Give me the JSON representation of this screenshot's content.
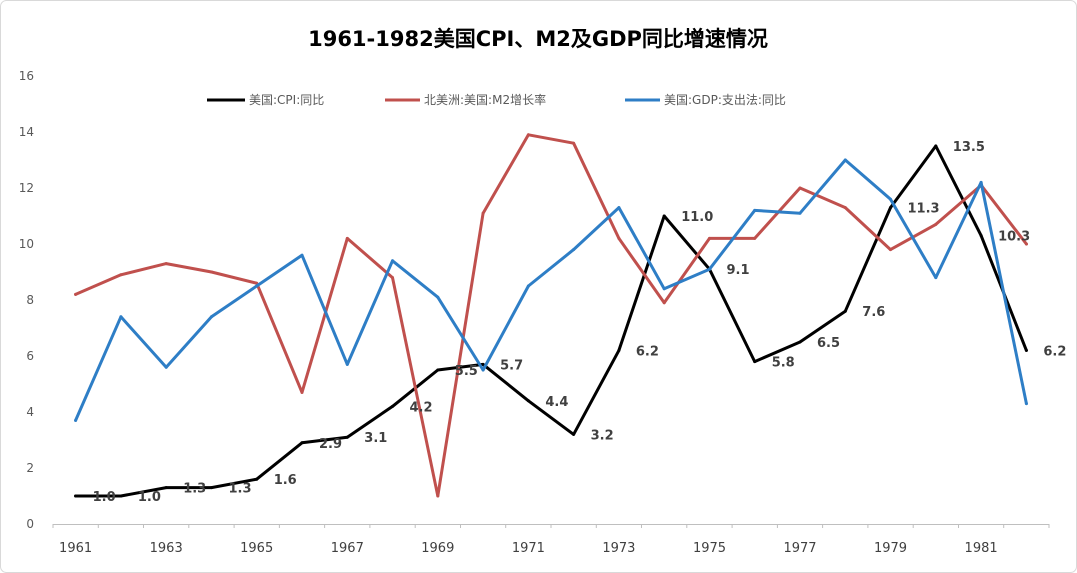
{
  "chart_data": {
    "type": "line",
    "title": "1961-1982美国CPI、M2及GDP同比增速情况",
    "x": [
      1961,
      1962,
      1963,
      1964,
      1965,
      1966,
      1967,
      1968,
      1969,
      1970,
      1971,
      1972,
      1973,
      1974,
      1975,
      1976,
      1977,
      1978,
      1979,
      1980,
      1981,
      1982
    ],
    "x_tick_labels": [
      "1961",
      "1963",
      "1965",
      "1967",
      "1969",
      "1971",
      "1973",
      "1975",
      "1977",
      "1979",
      "1981"
    ],
    "y_tick_labels": [
      "0",
      "2",
      "4",
      "6",
      "8",
      "10",
      "12",
      "14",
      "16"
    ],
    "ylim": [
      0,
      16
    ],
    "grid": false,
    "legend_position": "top",
    "series": [
      {
        "name": "美国:CPI:同比",
        "color": "#000000",
        "show_data_labels": true,
        "values": [
          1.0,
          1.0,
          1.3,
          1.3,
          1.6,
          2.9,
          3.1,
          4.2,
          5.5,
          5.7,
          4.4,
          3.2,
          6.2,
          11.0,
          9.1,
          5.8,
          6.5,
          7.6,
          11.3,
          13.5,
          10.3,
          6.2
        ]
      },
      {
        "name": "北美洲:美国:M2增长率",
        "color": "#C0504D",
        "show_data_labels": false,
        "values": [
          8.2,
          8.9,
          9.3,
          9.0,
          8.6,
          4.7,
          10.2,
          8.8,
          1.0,
          11.1,
          13.9,
          13.6,
          10.2,
          7.9,
          10.2,
          10.2,
          12.0,
          11.3,
          9.8,
          10.7,
          12.1,
          10.0
        ]
      },
      {
        "name": "美国:GDP:支出法:同比",
        "color": "#2E7EC6",
        "show_data_labels": false,
        "values": [
          3.7,
          7.4,
          5.6,
          7.4,
          8.5,
          9.6,
          5.7,
          9.4,
          8.1,
          5.5,
          8.5,
          9.8,
          11.3,
          8.4,
          9.1,
          11.2,
          11.1,
          13.0,
          11.6,
          8.8,
          12.2,
          4.3
        ]
      }
    ]
  }
}
